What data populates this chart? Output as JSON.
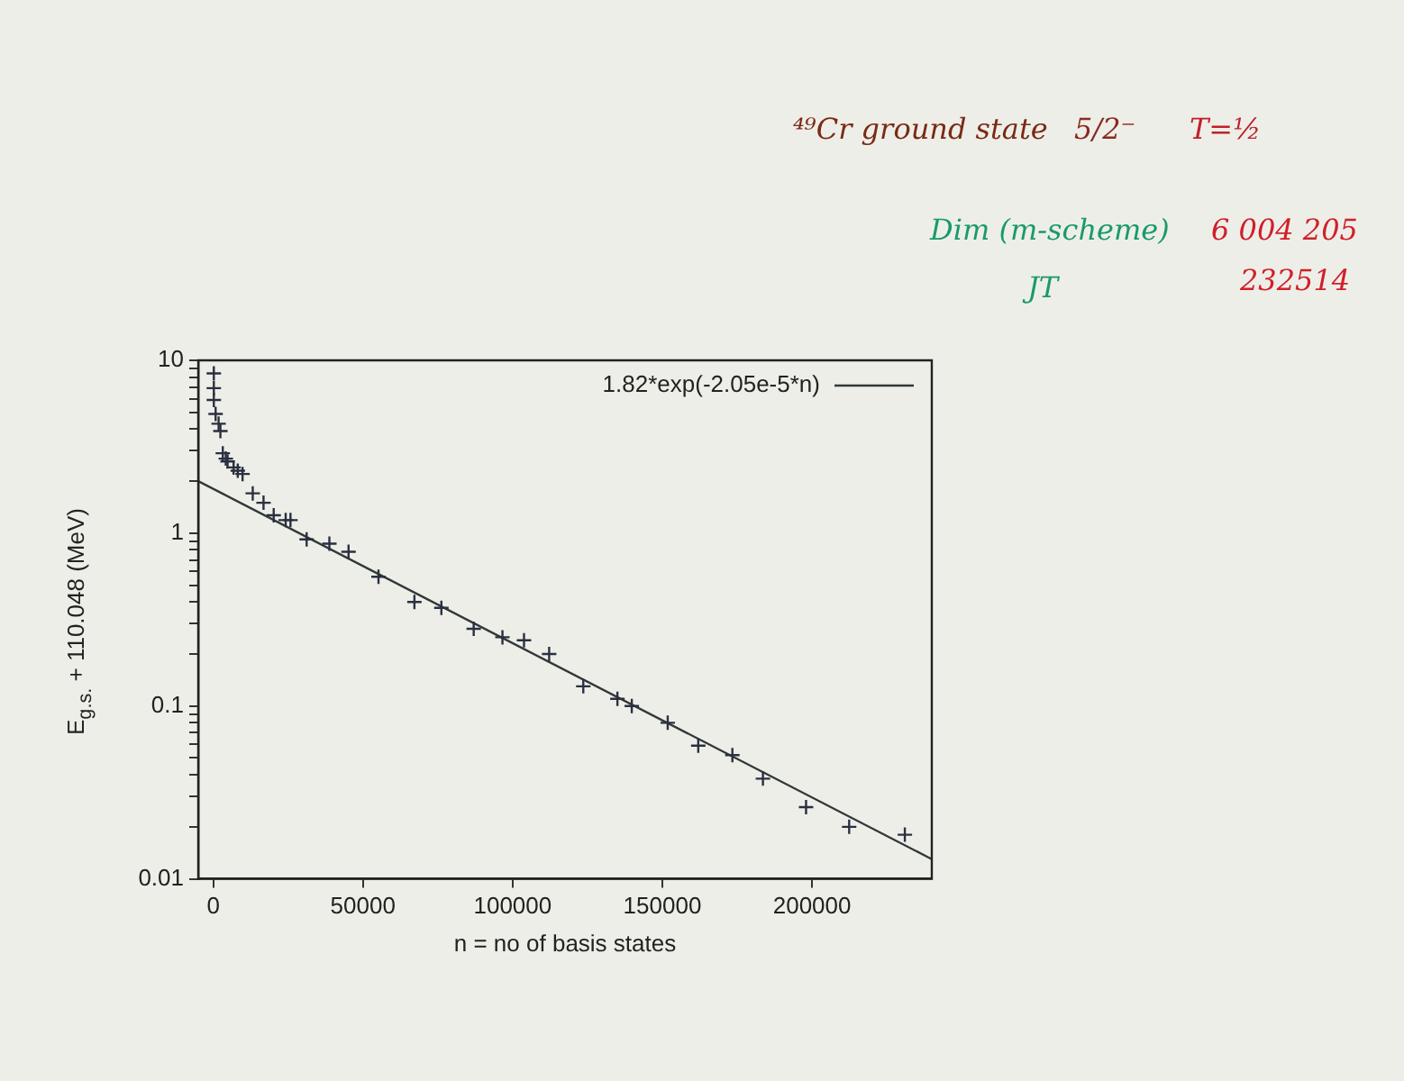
{
  "chart_data": {
    "type": "scatter",
    "xlabel": "n = no of basis states",
    "ylabel": "E$_{g.s.}$ + 110.048 (MeV)",
    "log": "y",
    "grid": false,
    "legend": "top right",
    "marker": "cross",
    "xlim": [
      -5000,
      240000
    ],
    "xticks": [
      0,
      50000,
      100000,
      150000,
      200000
    ],
    "ylim": [
      0.01,
      10
    ],
    "yticks": [
      0.01,
      {
        "value": 0.02,
        "label": null
      },
      {
        "value": 0.03,
        "label": null
      },
      {
        "value": 0.04,
        "label": null
      },
      {
        "value": 0.05,
        "label": null
      },
      {
        "value": 0.06,
        "label": null
      },
      {
        "value": 0.07,
        "label": null
      },
      {
        "value": 0.08,
        "label": null
      },
      {
        "value": 0.09,
        "label": null
      },
      0.1,
      {
        "value": 0.2,
        "label": null
      },
      {
        "value": 0.3,
        "label": null
      },
      {
        "value": 0.4,
        "label": null
      },
      {
        "value": 0.5,
        "label": null
      },
      {
        "value": 0.6,
        "label": null
      },
      {
        "value": 0.7,
        "label": null
      },
      {
        "value": 0.8,
        "label": null
      },
      {
        "value": 0.9,
        "label": null
      },
      1,
      {
        "value": 2,
        "label": null
      },
      {
        "value": 3,
        "label": null
      },
      {
        "value": 4,
        "label": null
      },
      {
        "value": 5,
        "label": null
      },
      {
        "value": 6,
        "label": null
      },
      {
        "value": 7,
        "label": null
      },
      {
        "value": 8,
        "label": null
      },
      {
        "value": 9,
        "label": null
      },
      10
    ],
    "series": [
      {
        "color": "#2a3040",
        "x": [
          200,
          200,
          200,
          800,
          1800,
          2400,
          3200,
          4200,
          4800,
          6800,
          8200,
          9800,
          13200,
          16800,
          20200,
          24200,
          25800,
          31200,
          38800,
          45200,
          55200,
          67200,
          76200,
          87000,
          96600,
          103800,
          112200,
          123600,
          135000,
          139800,
          151800,
          162000,
          173400,
          183600,
          198000,
          212400,
          231000
        ],
        "values": [
          8.4,
          6.9,
          5.9,
          4.9,
          4.3,
          3.9,
          2.9,
          2.7,
          2.6,
          2.4,
          2.3,
          2.2,
          1.7,
          1.5,
          1.27,
          1.19,
          1.19,
          0.92,
          0.87,
          0.78,
          0.56,
          0.4,
          0.37,
          0.28,
          0.25,
          0.24,
          0.2,
          0.13,
          0.11,
          0.1,
          0.08,
          0.059,
          0.052,
          0.038,
          0.026,
          0.02,
          0.018
        ]
      },
      {
        "type": "line",
        "name": "1.82*exp(-2.05e-5*n)",
        "color": "#303838",
        "marker": "none",
        "x": [
          -5000,
          240000
        ],
        "values": [
          2.0,
          0.013
        ]
      }
    ],
    "annotations": [
      "⁴⁹Cr ground state",
      "5/2⁻",
      "T=½",
      "Dim (m-scheme)",
      "6 004 205",
      "JT",
      "232514"
    ]
  }
}
